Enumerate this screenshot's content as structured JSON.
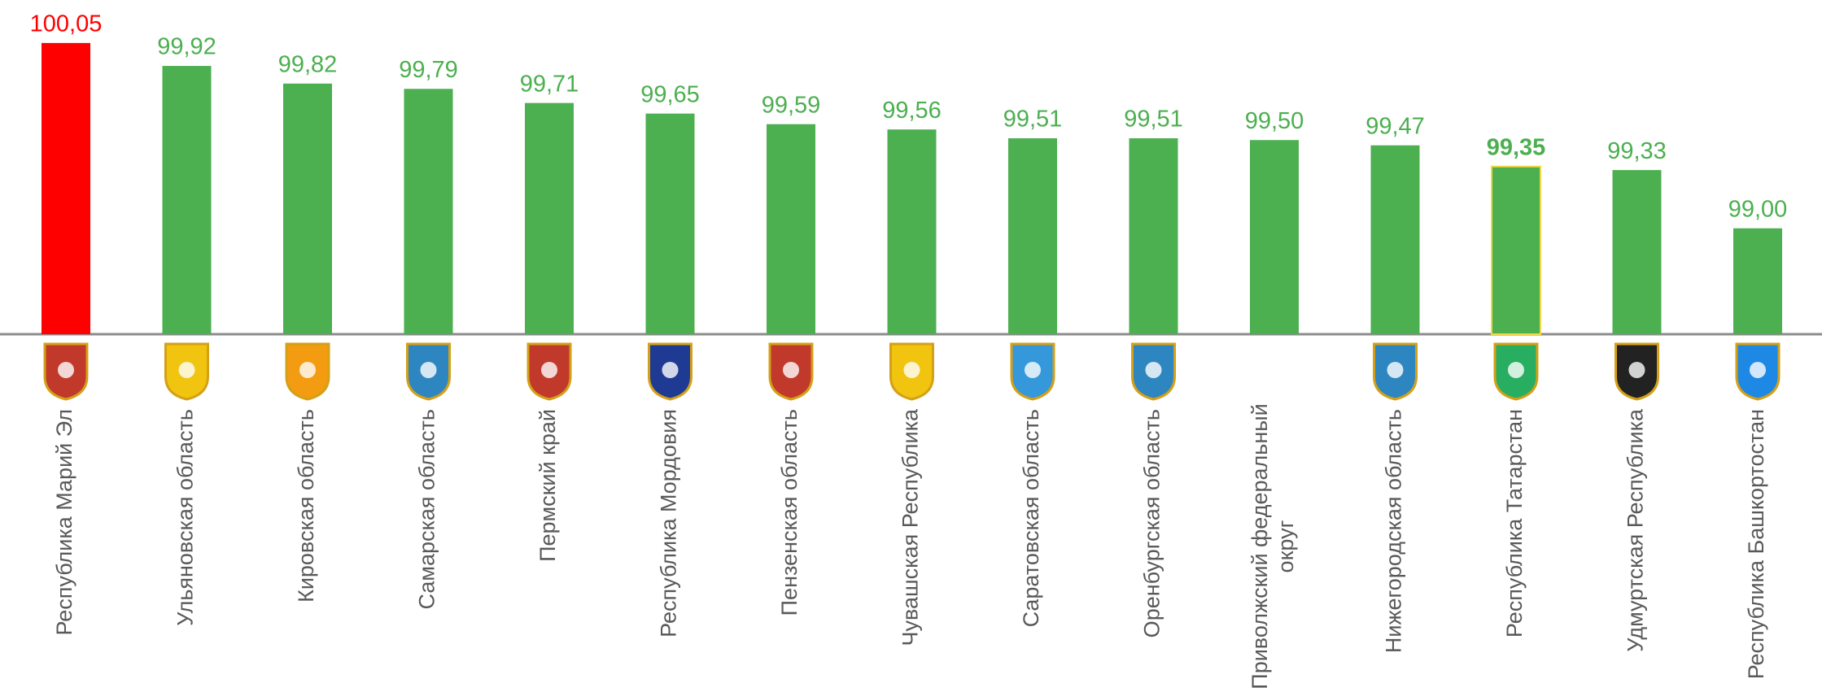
{
  "chart_data": {
    "type": "bar",
    "categories": [
      "Республика Марий Эл",
      "Ульяновская область",
      "Кировская область",
      "Самарская область",
      "Пермский край",
      "Республика Мордовия",
      "Пензенская область",
      "Чувашская Республика",
      "Саратовская область",
      "Оренбургская область",
      "Приволжский федеральный округ",
      "Нижегородская область",
      "Республика Татарстан",
      "Удмуртская Республика",
      "Республика Башкортостан"
    ],
    "values": [
      100.05,
      99.92,
      99.82,
      99.79,
      99.71,
      99.65,
      99.59,
      99.56,
      99.51,
      99.51,
      99.5,
      99.47,
      99.35,
      99.33,
      99.0
    ],
    "value_labels": [
      "100,05",
      "99,92",
      "99,82",
      "99,79",
      "99,71",
      "99,65",
      "99,59",
      "99,56",
      "99,51",
      "99,51",
      "99,50",
      "99,47",
      "99,35",
      "99,33",
      "99,00"
    ],
    "colors": [
      "#ff0000",
      "#4caf50",
      "#4caf50",
      "#4caf50",
      "#4caf50",
      "#4caf50",
      "#4caf50",
      "#4caf50",
      "#4caf50",
      "#4caf50",
      "#4caf50",
      "#4caf50",
      "#4caf50",
      "#4caf50",
      "#4caf50"
    ],
    "emphasis": [
      false,
      false,
      false,
      false,
      false,
      false,
      false,
      false,
      false,
      false,
      false,
      false,
      true,
      false,
      false
    ],
    "ylim": [
      98.4,
      100.1
    ]
  }
}
